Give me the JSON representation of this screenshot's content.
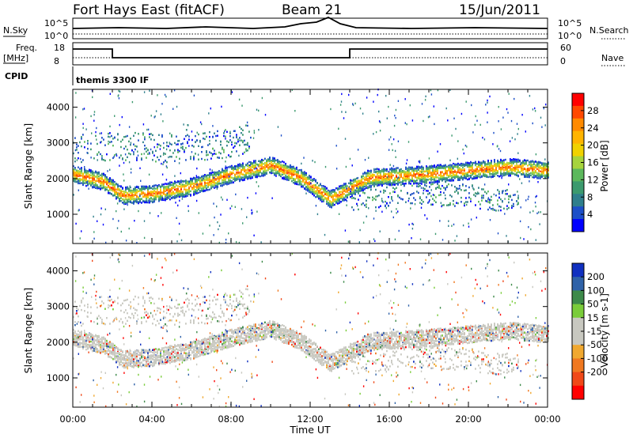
{
  "header": {
    "station": "Fort Hays East (fitACF)",
    "beam": "Beam 21",
    "date": "15/Jun/2011"
  },
  "panels": {
    "nsky_label": "N.Sky",
    "nsky_ticks": [
      "10^5",
      "10^0"
    ],
    "nsearch_label": "N.Search",
    "nsearch_ticks": [
      "10^5",
      "10^0"
    ],
    "freq_label_1": "Freq.",
    "freq_label_2": "[MHz]",
    "freq_ticks": [
      "18",
      "8"
    ],
    "nave_label": "Nave",
    "nave_ticks": [
      "60",
      "0"
    ],
    "cpid_label": "CPID",
    "cpid_text": "themis 3300 IF"
  },
  "chart_data": [
    {
      "type": "heatmap",
      "name": "Power",
      "xlabel": "Time UT",
      "ylabel": "Slant Range [km]",
      "x_ticks": [
        "00:00",
        "04:00",
        "08:00",
        "12:00",
        "16:00",
        "20:00",
        "00:00"
      ],
      "xlim_hours": [
        0,
        24
      ],
      "y_ticks": [
        "4000",
        "3000",
        "2000",
        "1000"
      ],
      "ylim": [
        180,
        4500
      ],
      "colorbar_label": "Power [dB]",
      "colorbar_ticks": [
        "28",
        "24",
        "20",
        "16",
        "12",
        "8",
        "4"
      ],
      "colorbar_colors": [
        "#ff0000",
        "#ff4800",
        "#ff8a00",
        "#ffb400",
        "#f0d200",
        "#a6d43c",
        "#5cb85c",
        "#3c9a6e",
        "#2f7f8c",
        "#1d4fc8",
        "#0000ff"
      ],
      "bands": [
        {
          "t": [
            0,
            1.5,
            2.5,
            4,
            6,
            8,
            10,
            11.5,
            13,
            14,
            15,
            18,
            22,
            24
          ],
          "r": [
            2100,
            1900,
            1500,
            1550,
            1750,
            2100,
            2350,
            2000,
            1400,
            1700,
            2000,
            2100,
            2300,
            2200
          ],
          "w": 300
        },
        {
          "t": [
            0,
            2,
            6,
            9
          ],
          "r": [
            2800,
            2900,
            2800,
            3100
          ],
          "w": 500
        },
        {
          "t": [
            14,
            17,
            20,
            22.5
          ],
          "r": [
            1400,
            1600,
            1500,
            1300
          ],
          "w": 400
        }
      ]
    },
    {
      "type": "heatmap",
      "name": "Velocity",
      "xlabel": "Time UT",
      "ylabel": "Slant Range [km]",
      "x_ticks": [
        "00:00",
        "04:00",
        "08:00",
        "12:00",
        "16:00",
        "20:00",
        "00:00"
      ],
      "xlim_hours": [
        0,
        24
      ],
      "y_ticks": [
        "4000",
        "3000",
        "2000",
        "1000"
      ],
      "ylim": [
        180,
        4500
      ],
      "colorbar_label": "Velocity [m s-1]",
      "colorbar_ticks": [
        "200",
        "100",
        "50",
        "15",
        "-15",
        "-50",
        "-100",
        "-200"
      ],
      "colorbar_colors": [
        "#1030c0",
        "#2f62a8",
        "#3d8a4a",
        "#7acc3a",
        "#c8c8c0",
        "#c8c8c0",
        "#f0a830",
        "#f07820",
        "#f04818",
        "#ff0000"
      ]
    }
  ]
}
